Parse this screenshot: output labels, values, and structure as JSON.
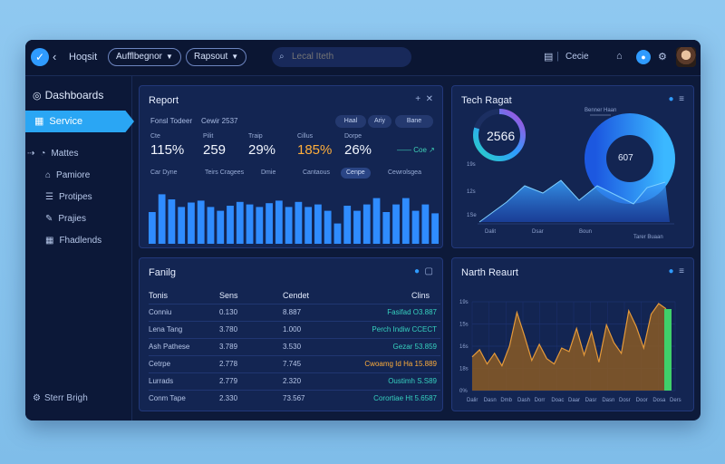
{
  "topbar": {
    "app_name": "Hoqsit",
    "dropdown1": "Aufflbegnor",
    "dropdown2": "Rapsout",
    "search_placeholder": "Lecal Iteth",
    "right_label": "Cecie"
  },
  "sidebar": {
    "header": "Dashboards",
    "active": "Service",
    "items": [
      "Mattes",
      "Pamiore",
      "Protipes",
      "Prajies",
      "Fhadlends"
    ],
    "footer": "Sterr Brigh"
  },
  "report": {
    "title": "Report",
    "sub1": "Fonsl Todeer",
    "sub2": "Cewir 2537",
    "buttons": [
      "Haal",
      "Ariy",
      "Bane"
    ],
    "kpis": [
      {
        "label": "Cte",
        "value": "115%"
      },
      {
        "label": "Pilit",
        "value": "259"
      },
      {
        "label": "Traip",
        "value": "29%"
      },
      {
        "label": "Cillus",
        "value": "185%",
        "accent": "#ffae3b"
      },
      {
        "label": "Dorpe",
        "value": "26%"
      }
    ],
    "trend_label": "Coe",
    "chart_labels": [
      "Car Dyne",
      "Teirs Cragees",
      "Dmie",
      "Cantaous",
      "Cenpe",
      "Cewrolsgea"
    ],
    "bar_values": [
      50,
      78,
      70,
      58,
      65,
      68,
      58,
      52,
      60,
      66,
      62,
      58,
      64,
      68,
      58,
      66,
      58,
      62,
      52,
      32,
      60,
      52,
      62,
      72,
      50,
      62,
      72,
      52,
      62,
      48
    ]
  },
  "tech": {
    "title": "Tech Ragat",
    "ring_value": "2566",
    "donut_value": "607",
    "legend": "Benner Haan",
    "y_ticks": [
      "19s",
      "12s",
      "1Se"
    ],
    "x_labels": [
      "Dalit",
      "Dsar",
      "Boun",
      "Tarer Buaan"
    ]
  },
  "family": {
    "title": "Fanilg",
    "columns": [
      "Tonis",
      "Sens",
      "Cendet",
      "Clins"
    ],
    "rows": [
      {
        "name": "Conniu",
        "a": "0.130",
        "b": "8.887",
        "status": "Fasifad O3.887",
        "color": "#36d1bf"
      },
      {
        "name": "Lena Tang",
        "a": "3.780",
        "b": "1.000",
        "status": "Perch Indiw CCECT",
        "color": "#36d1bf"
      },
      {
        "name": "Ash Pathese",
        "a": "3.789",
        "b": "3.530",
        "status": "Gezar 53.859",
        "color": "#36d1bf"
      },
      {
        "name": "Cetrpe",
        "a": "2.778",
        "b": "7.745",
        "status": "Cwoamg Id Ha 15.889",
        "color": "#ffae3b"
      },
      {
        "name": "Lurrads",
        "a": "2.779",
        "b": "2.320",
        "status": "Oustimh S.S89",
        "color": "#36d1bf"
      },
      {
        "name": "Conm Tape",
        "a": "2.330",
        "b": "73.567",
        "status": "Corortiae Ht 5.6587",
        "color": "#36d1bf"
      }
    ]
  },
  "north": {
    "title": "Narth Reaurt",
    "y_ticks": [
      "19s",
      "15s",
      "16s",
      "18s",
      "0%"
    ],
    "x_labels": [
      "Dalir",
      "Dasn",
      "Dmb",
      "Dash",
      "Dorr",
      "Doac",
      "Daar",
      "Dasr",
      "Dasn",
      "Dosr",
      "Door",
      "Dosa",
      "Ders"
    ],
    "values": [
      38,
      46,
      30,
      42,
      28,
      50,
      88,
      62,
      34,
      52,
      36,
      30,
      48,
      44,
      70,
      40,
      66,
      32,
      74,
      54,
      42,
      90,
      72,
      48,
      86,
      98,
      92
    ]
  }
}
